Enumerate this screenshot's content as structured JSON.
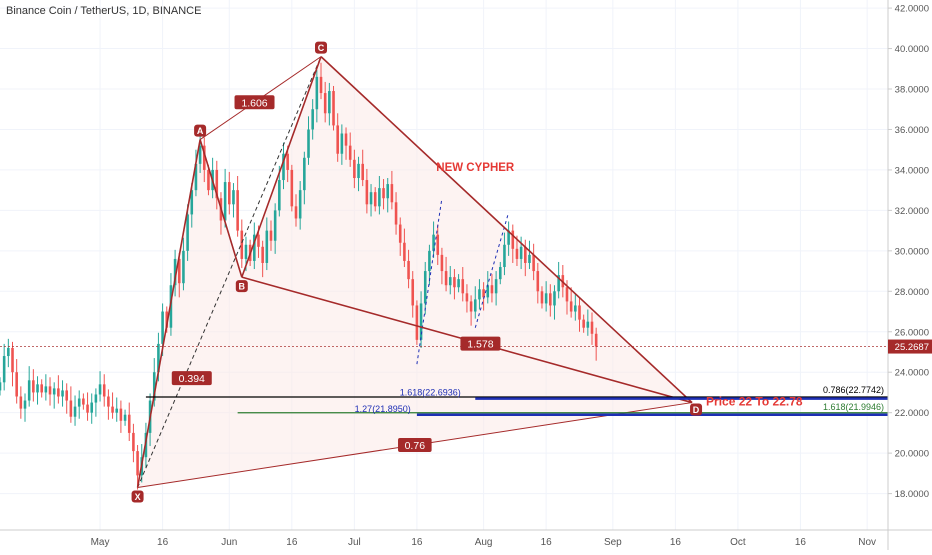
{
  "header": {
    "symbol_title": "Binance Coin / TetherUS, 1D, BINANCE"
  },
  "colors": {
    "up": "#26a69a",
    "down": "#ef5350",
    "pattern": "#a52a2a",
    "pattern_fill": "#fbe9e7",
    "last_price": "#a52a2a",
    "blue": "#1e2fb5",
    "green": "#2e7d32",
    "black": "#000000",
    "grid": "#f0f3fa",
    "axis_text": "#555555"
  },
  "chart_data": {
    "type": "candlestick",
    "title": "Binance Coin / TetherUS, 1D, BINANCE",
    "x_ticks": [
      {
        "label": "May",
        "date": "2019-05-01"
      },
      {
        "label": "16",
        "date": "2019-05-16"
      },
      {
        "label": "Jun",
        "date": "2019-06-01"
      },
      {
        "label": "16",
        "date": "2019-06-16"
      },
      {
        "label": "Jul",
        "date": "2019-07-01"
      },
      {
        "label": "16",
        "date": "2019-07-16"
      },
      {
        "label": "Aug",
        "date": "2019-08-01"
      },
      {
        "label": "16",
        "date": "2019-08-16"
      },
      {
        "label": "Sep",
        "date": "2019-09-01"
      },
      {
        "label": "16",
        "date": "2019-09-16"
      },
      {
        "label": "Oct",
        "date": "2019-10-01"
      },
      {
        "label": "16",
        "date": "2019-10-16"
      },
      {
        "label": "Nov",
        "date": "2019-11-01"
      }
    ],
    "y_ticks": [
      "18.0000",
      "20.0000",
      "22.0000",
      "24.0000",
      "26.0000",
      "28.0000",
      "30.0000",
      "32.0000",
      "34.0000",
      "36.0000",
      "38.0000",
      "40.0000",
      "42.0000"
    ],
    "x_range": [
      "2019-04-07",
      "2019-11-06"
    ],
    "y_range": [
      16.2,
      42.4
    ],
    "last_price": {
      "value": 25.2687,
      "label": "25.2687"
    },
    "closes": [
      {
        "date": "2019-04-07",
        "close": 23.5
      },
      {
        "date": "2019-04-08",
        "close": 24.8
      },
      {
        "date": "2019-04-09",
        "close": 25.2
      },
      {
        "date": "2019-04-10",
        "close": 24.0
      },
      {
        "date": "2019-04-11",
        "close": 22.8
      },
      {
        "date": "2019-04-12",
        "close": 22.2
      },
      {
        "date": "2019-04-13",
        "close": 22.6
      },
      {
        "date": "2019-04-14",
        "close": 23.6
      },
      {
        "date": "2019-04-15",
        "close": 23.0
      },
      {
        "date": "2019-04-16",
        "close": 23.4
      },
      {
        "date": "2019-04-17",
        "close": 23.0
      },
      {
        "date": "2019-04-18",
        "close": 23.3
      },
      {
        "date": "2019-04-19",
        "close": 22.9
      },
      {
        "date": "2019-04-20",
        "close": 23.2
      },
      {
        "date": "2019-04-21",
        "close": 22.8
      },
      {
        "date": "2019-04-22",
        "close": 23.1
      },
      {
        "date": "2019-04-23",
        "close": 22.6
      },
      {
        "date": "2019-04-24",
        "close": 21.8
      },
      {
        "date": "2019-04-25",
        "close": 22.3
      },
      {
        "date": "2019-04-26",
        "close": 22.7
      },
      {
        "date": "2019-04-27",
        "close": 22.4
      },
      {
        "date": "2019-04-28",
        "close": 22.0
      },
      {
        "date": "2019-04-29",
        "close": 22.5
      },
      {
        "date": "2019-04-30",
        "close": 22.9
      },
      {
        "date": "2019-05-01",
        "close": 23.4
      },
      {
        "date": "2019-05-02",
        "close": 22.8
      },
      {
        "date": "2019-05-03",
        "close": 22.3
      },
      {
        "date": "2019-05-04",
        "close": 22.0
      },
      {
        "date": "2019-05-05",
        "close": 22.2
      },
      {
        "date": "2019-05-06",
        "close": 21.6
      },
      {
        "date": "2019-05-07",
        "close": 21.9
      },
      {
        "date": "2019-05-08",
        "close": 21.0
      },
      {
        "date": "2019-05-09",
        "close": 20.1
      },
      {
        "date": "2019-05-10",
        "close": 18.9
      },
      {
        "date": "2019-05-11",
        "close": 19.8
      },
      {
        "date": "2019-05-12",
        "close": 21.0
      },
      {
        "date": "2019-05-13",
        "close": 22.6
      },
      {
        "date": "2019-05-14",
        "close": 24.0
      },
      {
        "date": "2019-05-15",
        "close": 25.4
      },
      {
        "date": "2019-05-16",
        "close": 27.0
      },
      {
        "date": "2019-05-17",
        "close": 26.2
      },
      {
        "date": "2019-05-18",
        "close": 28.3
      },
      {
        "date": "2019-05-19",
        "close": 29.6
      },
      {
        "date": "2019-05-20",
        "close": 28.4
      },
      {
        "date": "2019-05-21",
        "close": 30.0
      },
      {
        "date": "2019-05-22",
        "close": 31.8
      },
      {
        "date": "2019-05-23",
        "close": 33.0
      },
      {
        "date": "2019-05-24",
        "close": 34.3
      },
      {
        "date": "2019-05-25",
        "close": 35.2
      },
      {
        "date": "2019-05-26",
        "close": 34.0
      },
      {
        "date": "2019-05-27",
        "close": 33.0
      },
      {
        "date": "2019-05-28",
        "close": 34.0
      },
      {
        "date": "2019-05-29",
        "close": 32.6
      },
      {
        "date": "2019-05-30",
        "close": 31.5
      },
      {
        "date": "2019-05-31",
        "close": 33.4
      },
      {
        "date": "2019-06-01",
        "close": 32.3
      },
      {
        "date": "2019-06-02",
        "close": 33.0
      },
      {
        "date": "2019-06-03",
        "close": 31.0
      },
      {
        "date": "2019-06-04",
        "close": 29.6
      },
      {
        "date": "2019-06-05",
        "close": 30.3
      },
      {
        "date": "2019-06-06",
        "close": 29.5
      },
      {
        "date": "2019-06-07",
        "close": 30.8
      },
      {
        "date": "2019-06-08",
        "close": 30.2
      },
      {
        "date": "2019-06-09",
        "close": 29.4
      },
      {
        "date": "2019-06-10",
        "close": 31.0
      },
      {
        "date": "2019-06-11",
        "close": 30.5
      },
      {
        "date": "2019-06-12",
        "close": 32.0
      },
      {
        "date": "2019-06-13",
        "close": 33.5
      },
      {
        "date": "2019-06-14",
        "close": 34.8
      },
      {
        "date": "2019-06-15",
        "close": 34.0
      },
      {
        "date": "2019-06-16",
        "close": 32.2
      },
      {
        "date": "2019-06-17",
        "close": 31.6
      },
      {
        "date": "2019-06-18",
        "close": 33.0
      },
      {
        "date": "2019-06-19",
        "close": 34.6
      },
      {
        "date": "2019-06-20",
        "close": 36.0
      },
      {
        "date": "2019-06-21",
        "close": 37.0
      },
      {
        "date": "2019-06-22",
        "close": 38.6
      },
      {
        "date": "2019-06-23",
        "close": 37.8
      },
      {
        "date": "2019-06-24",
        "close": 36.8
      },
      {
        "date": "2019-06-25",
        "close": 37.9
      },
      {
        "date": "2019-06-26",
        "close": 36.2
      },
      {
        "date": "2019-06-27",
        "close": 34.8
      },
      {
        "date": "2019-06-28",
        "close": 35.8
      },
      {
        "date": "2019-06-29",
        "close": 35.2
      },
      {
        "date": "2019-06-30",
        "close": 34.5
      },
      {
        "date": "2019-07-01",
        "close": 33.6
      },
      {
        "date": "2019-07-02",
        "close": 34.3
      },
      {
        "date": "2019-07-03",
        "close": 33.5
      },
      {
        "date": "2019-07-04",
        "close": 32.3
      },
      {
        "date": "2019-07-05",
        "close": 32.9
      },
      {
        "date": "2019-07-06",
        "close": 32.2
      },
      {
        "date": "2019-07-07",
        "close": 33.1
      },
      {
        "date": "2019-07-08",
        "close": 32.6
      },
      {
        "date": "2019-07-09",
        "close": 33.3
      },
      {
        "date": "2019-07-10",
        "close": 32.4
      },
      {
        "date": "2019-07-11",
        "close": 31.3
      },
      {
        "date": "2019-07-12",
        "close": 30.4
      },
      {
        "date": "2019-07-13",
        "close": 29.5
      },
      {
        "date": "2019-07-14",
        "close": 28.6
      },
      {
        "date": "2019-07-15",
        "close": 27.3
      },
      {
        "date": "2019-07-16",
        "close": 25.6
      },
      {
        "date": "2019-07-17",
        "close": 27.4
      },
      {
        "date": "2019-07-18",
        "close": 29.0
      },
      {
        "date": "2019-07-19",
        "close": 30.0
      },
      {
        "date": "2019-07-20",
        "close": 30.8
      },
      {
        "date": "2019-07-21",
        "close": 29.8
      },
      {
        "date": "2019-07-22",
        "close": 29.0
      },
      {
        "date": "2019-07-23",
        "close": 28.3
      },
      {
        "date": "2019-07-24",
        "close": 28.7
      },
      {
        "date": "2019-07-25",
        "close": 28.2
      },
      {
        "date": "2019-07-26",
        "close": 28.6
      },
      {
        "date": "2019-07-27",
        "close": 27.9
      },
      {
        "date": "2019-07-28",
        "close": 27.5
      },
      {
        "date": "2019-07-29",
        "close": 27.0
      },
      {
        "date": "2019-07-30",
        "close": 27.6
      },
      {
        "date": "2019-07-31",
        "close": 28.1
      },
      {
        "date": "2019-08-01",
        "close": 27.7
      },
      {
        "date": "2019-08-02",
        "close": 28.3
      },
      {
        "date": "2019-08-03",
        "close": 27.9
      },
      {
        "date": "2019-08-04",
        "close": 28.6
      },
      {
        "date": "2019-08-05",
        "close": 29.2
      },
      {
        "date": "2019-08-06",
        "close": 30.3
      },
      {
        "date": "2019-08-07",
        "close": 31.0
      },
      {
        "date": "2019-08-08",
        "close": 30.1
      },
      {
        "date": "2019-08-09",
        "close": 29.6
      },
      {
        "date": "2019-08-10",
        "close": 30.2
      },
      {
        "date": "2019-08-11",
        "close": 29.4
      },
      {
        "date": "2019-08-12",
        "close": 29.8
      },
      {
        "date": "2019-08-13",
        "close": 29.0
      },
      {
        "date": "2019-08-14",
        "close": 28.0
      },
      {
        "date": "2019-08-15",
        "close": 27.4
      },
      {
        "date": "2019-08-16",
        "close": 27.9
      },
      {
        "date": "2019-08-17",
        "close": 27.3
      },
      {
        "date": "2019-08-18",
        "close": 28.0
      },
      {
        "date": "2019-08-19",
        "close": 28.8
      },
      {
        "date": "2019-08-20",
        "close": 28.2
      },
      {
        "date": "2019-08-21",
        "close": 27.5
      },
      {
        "date": "2019-08-22",
        "close": 27.0
      },
      {
        "date": "2019-08-23",
        "close": 27.3
      },
      {
        "date": "2019-08-24",
        "close": 26.6
      },
      {
        "date": "2019-08-25",
        "close": 26.2
      },
      {
        "date": "2019-08-26",
        "close": 26.5
      },
      {
        "date": "2019-08-27",
        "close": 25.9
      },
      {
        "date": "2019-08-28",
        "close": 25.27
      }
    ],
    "pattern": {
      "name": "NEW CYPHER",
      "points": [
        {
          "label": "X",
          "date": "2019-05-10",
          "price": 18.3
        },
        {
          "label": "A",
          "date": "2019-05-25",
          "price": 35.5
        },
        {
          "label": "B",
          "date": "2019-06-04",
          "price": 28.7
        },
        {
          "label": "C",
          "date": "2019-06-23",
          "price": 39.6
        },
        {
          "label": "D",
          "date": "2019-09-20",
          "price": 22.5
        }
      ],
      "ratios": [
        "1.606",
        "0.394",
        "1.578",
        "0.76"
      ]
    },
    "levels": [
      {
        "label": "1.618(22.6936)",
        "price": 22.6936,
        "color": "blue"
      },
      {
        "label": "0.786(22.7742)",
        "price": 22.7742,
        "color": "black"
      },
      {
        "label": "1.27(21.8950)",
        "price": 21.895,
        "color": "blue"
      },
      {
        "label": "1.618(21.9946)",
        "price": 21.9946,
        "color": "green"
      }
    ],
    "annotation": "Price 22 To 22.78"
  }
}
